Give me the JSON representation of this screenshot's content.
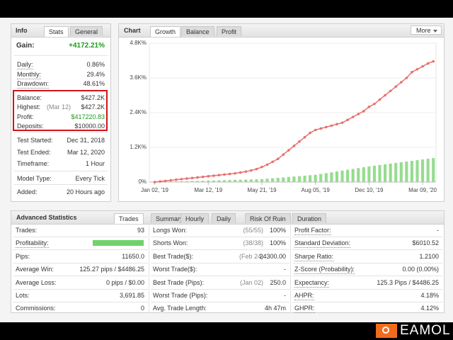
{
  "info": {
    "tabs": [
      "Info",
      "Stats",
      "General"
    ],
    "gain": {
      "label": "Gain:",
      "value": "+4172.21%"
    },
    "groups": [
      [
        {
          "label": "Daily:",
          "value": "0.86%"
        },
        {
          "label": "Monthly:",
          "value": "29.4%"
        },
        {
          "label": "Drawdown:",
          "value": "48.61%"
        }
      ],
      [
        {
          "label": "Balance:",
          "value": "$427.2K"
        },
        {
          "label": "Highest:",
          "note": "(Mar 12)",
          "value": "$427.2K"
        },
        {
          "label": "Profit:",
          "value": "$417220.83"
        },
        {
          "label": "Deposits:",
          "value": "$10000.00"
        }
      ],
      [
        {
          "label": "Test Started:",
          "value": "Dec 31, 2018"
        },
        {
          "label": "Test Ended:",
          "value": "Mar 12, 2020"
        },
        {
          "label": "Timeframe:",
          "value": "1 Hour"
        }
      ],
      [
        {
          "label": "Model Type:",
          "value": "Every Tick"
        }
      ],
      [
        {
          "label": "Added:",
          "value": "20 Hours ago"
        }
      ]
    ]
  },
  "chart_panel": {
    "tabs": [
      "Chart",
      "Growth",
      "Balance",
      "Profit"
    ],
    "more": "More"
  },
  "chart_data": {
    "type": "line",
    "x": [
      0,
      1,
      2,
      3,
      4,
      5,
      6,
      7,
      8,
      9,
      10,
      11,
      12,
      13,
      14,
      15,
      16,
      17,
      18,
      19,
      20,
      21,
      22,
      23,
      24,
      25,
      26,
      27,
      28,
      29,
      30,
      31,
      32,
      33,
      34,
      35,
      36,
      37,
      38,
      39,
      40,
      41,
      42,
      43,
      44,
      45,
      46,
      47,
      48,
      49,
      50,
      51,
      52
    ],
    "series": [
      {
        "color": "#e8706e",
        "values": [
          0,
          20,
          40,
          60,
          80,
          100,
          120,
          140,
          160,
          180,
          200,
          220,
          240,
          260,
          280,
          300,
          330,
          360,
          400,
          450,
          520,
          600,
          700,
          800,
          950,
          1100,
          1250,
          1400,
          1550,
          1700,
          1800,
          1850,
          1900,
          1950,
          2000,
          2050,
          2150,
          2250,
          2350,
          2450,
          2600,
          2700,
          2850,
          3000,
          3150,
          3300,
          3450,
          3600,
          3800,
          3900,
          4000,
          4100,
          4172.21
        ]
      },
      {
        "color": "#97dc8f",
        "values": [
          0,
          5,
          10,
          15,
          20,
          25,
          30,
          35,
          40,
          45,
          50,
          55,
          60,
          65,
          70,
          75,
          80,
          85,
          90,
          95,
          100,
          115,
          130,
          145,
          160,
          175,
          190,
          205,
          220,
          235,
          250,
          279,
          308,
          337,
          366,
          395,
          424,
          453,
          482,
          511,
          540,
          564,
          588,
          612,
          636,
          660,
          684,
          708,
          732,
          756,
          780,
          804,
          828
        ]
      }
    ],
    "xlim": [
      -1,
      52.5
    ],
    "xticks": [
      {
        "value": 0,
        "label": "Jan 02, '19"
      },
      {
        "value": 10,
        "label": "Mar 12, '19"
      },
      {
        "value": 20,
        "label": "May 21, '19"
      },
      {
        "value": 30,
        "label": "Aug 05, '19"
      },
      {
        "value": 40,
        "label": "Dec 10, '19"
      },
      {
        "value": 50,
        "label": "Mar 09, '20"
      }
    ],
    "ylim": [
      0,
      4800
    ],
    "yticks": [
      {
        "value": 0,
        "label": "0%"
      },
      {
        "value": 1200,
        "label": "1.2K%"
      },
      {
        "value": 2400,
        "label": "2.4K%"
      },
      {
        "value": 3600,
        "label": "3.6K%"
      },
      {
        "value": 4800,
        "label": "4.8K%"
      }
    ],
    "grid": true
  },
  "advanced": {
    "tabs": [
      "Advanced Statistics",
      "Trades",
      "Summary",
      "Hourly",
      "Daily",
      "Risk Of Ruin",
      "Duration"
    ],
    "columns": [
      [
        {
          "label": "Trades:",
          "value": "93"
        },
        {
          "label": "Profitability:"
        },
        {
          "label": "Pips:",
          "value": "11650.0"
        },
        {
          "label": "Average Win:",
          "value": "125.27 pips / $4486.25"
        },
        {
          "label": "Average Loss:",
          "value": "0 pips / $0.00"
        },
        {
          "label": "Lots:",
          "value": "3,691.85"
        },
        {
          "label": "Commissions:",
          "value": "0"
        }
      ],
      [
        {
          "label": "Longs Won:",
          "note": "(55/55)",
          "value": "100%"
        },
        {
          "label": "Shorts Won:",
          "note": "(38/38)",
          "value": "100%"
        },
        {
          "label": "Best Trade($):",
          "note": "(Feb 24)",
          "value": "24300.00"
        },
        {
          "label": "Worst Trade($):",
          "value": "-"
        },
        {
          "label": "Best Trade (Pips):",
          "note": "(Jan 02)",
          "value": "250.0"
        },
        {
          "label": "Worst Trade (Pips):",
          "value": "-"
        },
        {
          "label": "Avg. Trade Length:",
          "value": "4h 47m"
        }
      ],
      [
        {
          "label": "Profit Factor:",
          "value": "-"
        },
        {
          "label": "Standard Deviation:",
          "value": "$6010.52"
        },
        {
          "label": "Sharpe Ratio:",
          "value": "1.2100"
        },
        {
          "label": "Z-Score (Probability):",
          "value": "0.00 (0.00%)"
        },
        {
          "label": "Expectancy:",
          "value": "125.3 Pips / $4486.25"
        },
        {
          "label": "AHPR:",
          "value": "4.18%"
        },
        {
          "label": "GHPR:",
          "value": "4.12%"
        }
      ]
    ]
  },
  "brand": "EAMOL"
}
